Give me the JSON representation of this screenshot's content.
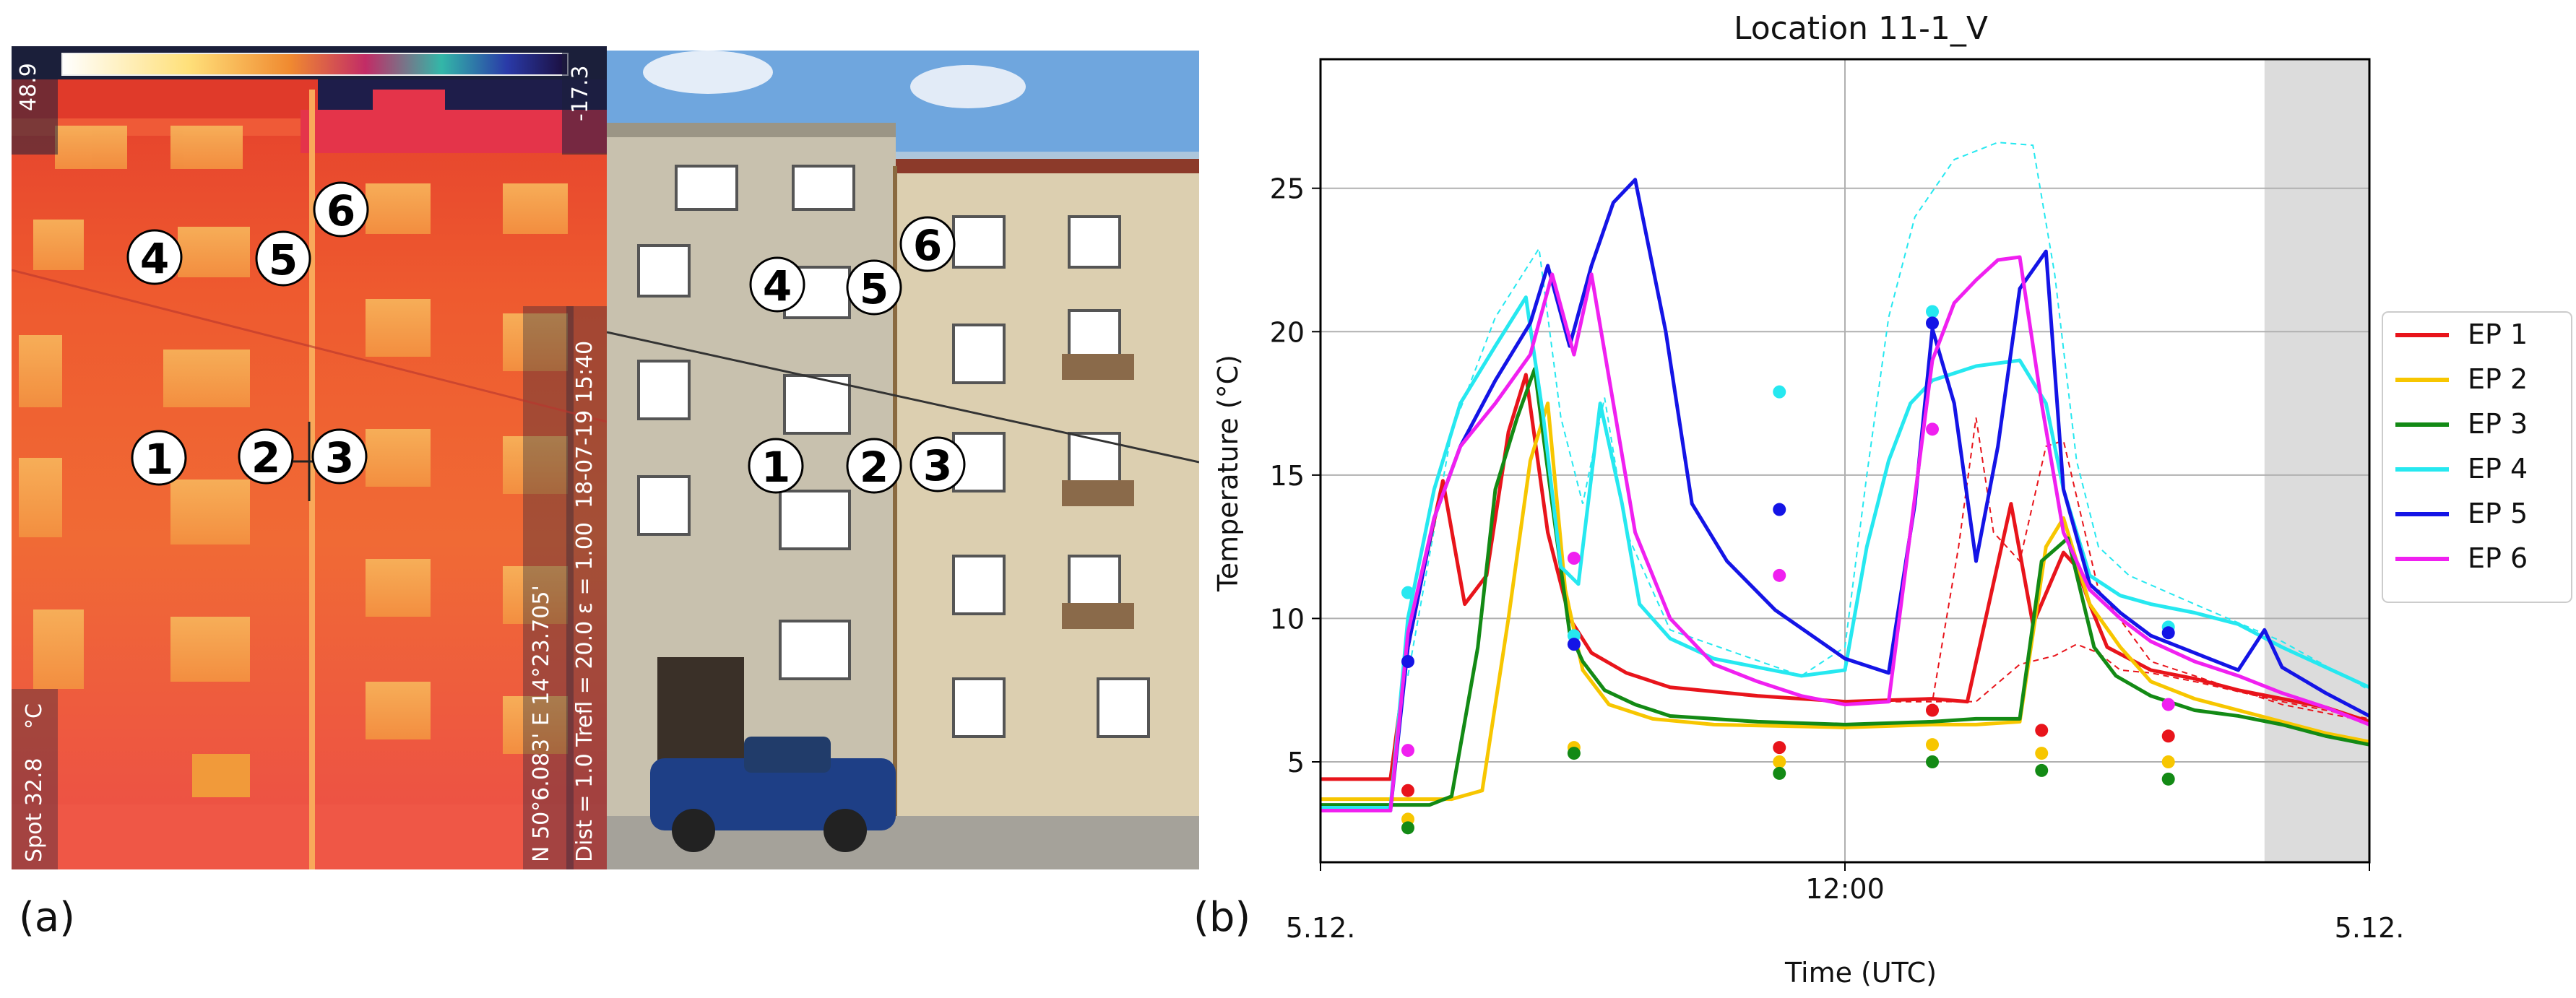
{
  "figure": {
    "panel_a_label": "(a)",
    "panel_b_label": "(b)"
  },
  "thermal_image": {
    "scale_max": "48.9",
    "scale_min": "-17.3",
    "unit": "°C",
    "spot": "Spot 32.8",
    "timestamp": "18-07-19 15:40",
    "gps": "N 50°6.083' E 14°23.705'",
    "params": "Dist = 1.0   Trefl = 20.0   ε = 1.00",
    "markers": [
      "1",
      "2",
      "3",
      "4",
      "5",
      "6"
    ]
  },
  "photo": {
    "markers": [
      "1",
      "2",
      "3",
      "4",
      "5",
      "6"
    ]
  },
  "chart_data": {
    "type": "line",
    "title": "Location 11-1_V",
    "xlabel": "Time (UTC)",
    "ylabel": "Temperature (°C)",
    "x_ticks": [
      {
        "t": 0,
        "label": "5.12."
      },
      {
        "t": 12,
        "label": "12:00"
      },
      {
        "t": 24,
        "label": "5.12."
      }
    ],
    "xlim_hours": [
      0,
      24
    ],
    "ylim": [
      1.5,
      29.5
    ],
    "y_ticks": [
      "5",
      "10",
      "15",
      "20",
      "25"
    ],
    "grid": true,
    "legend_position": "outside-right",
    "shaded_region_hours": [
      21.6,
      24
    ],
    "series": [
      {
        "name": "EP  1",
        "color": "#e8141b",
        "x": [
          0,
          1.6,
          2.0,
          2.4,
          2.8,
          3.3,
          3.8,
          4.3,
          4.7,
          5.2,
          5.7,
          6.2,
          7.0,
          8.0,
          10.0,
          12.0,
          14.0,
          14.8,
          15.8,
          16.3,
          17.0,
          17.3,
          17.6,
          18.0,
          19.0,
          20.0,
          21.0,
          22.0,
          23.0,
          24.0
        ],
        "y": [
          4.4,
          4.4,
          9.0,
          12.0,
          14.8,
          10.5,
          11.5,
          16.5,
          18.5,
          13.0,
          10.0,
          8.8,
          8.1,
          7.6,
          7.3,
          7.1,
          7.2,
          7.1,
          14.0,
          9.8,
          12.3,
          11.8,
          10.5,
          9.0,
          8.2,
          7.9,
          7.5,
          7.2,
          6.9,
          6.4
        ]
      },
      {
        "name": "EP  2",
        "color": "#f7c600",
        "x": [
          0,
          3.0,
          3.7,
          4.3,
          4.8,
          5.2,
          5.6,
          6.0,
          6.6,
          7.6,
          9.0,
          12.0,
          14.0,
          15.0,
          16.0,
          16.6,
          17.0,
          17.6,
          18.3,
          19.0,
          20.0,
          21.0,
          22.0,
          23.0,
          24.0
        ],
        "y": [
          3.7,
          3.7,
          4.0,
          10.0,
          15.5,
          17.5,
          11.0,
          8.2,
          7.0,
          6.5,
          6.3,
          6.2,
          6.3,
          6.3,
          6.4,
          12.5,
          13.5,
          10.5,
          9.0,
          7.8,
          7.2,
          6.8,
          6.4,
          6.0,
          5.7
        ]
      },
      {
        "name": "EP  3",
        "color": "#138a15",
        "x": [
          0,
          2.5,
          3.0,
          3.6,
          4.0,
          4.5,
          4.9,
          5.3,
          5.7,
          6.0,
          6.5,
          7.2,
          8.0,
          10.0,
          12.0,
          14.0,
          15.0,
          16.0,
          16.5,
          17.1,
          17.7,
          18.2,
          19.0,
          20.0,
          21.0,
          22.0,
          23.0,
          24.0
        ],
        "y": [
          3.5,
          3.5,
          3.8,
          9.0,
          14.5,
          17.0,
          18.7,
          14.0,
          9.5,
          8.5,
          7.5,
          7.0,
          6.6,
          6.4,
          6.3,
          6.4,
          6.5,
          6.5,
          12.0,
          12.8,
          9.0,
          8.0,
          7.3,
          6.8,
          6.6,
          6.3,
          5.9,
          5.6
        ]
      },
      {
        "name": "EP  4",
        "color": "#26e8f0",
        "x": [
          0,
          1.6,
          2.0,
          2.6,
          3.2,
          4.0,
          4.7,
          5.1,
          5.5,
          5.9,
          6.4,
          6.9,
          7.3,
          8.0,
          9.0,
          11.0,
          12.0,
          12.5,
          13.0,
          13.5,
          14.0,
          15.0,
          16.0,
          16.6,
          17.0,
          17.6,
          18.3,
          19.0,
          20.0,
          21.0,
          22.0,
          23.0,
          24.0
        ],
        "y": [
          3.4,
          3.4,
          10.0,
          14.5,
          17.5,
          19.5,
          21.2,
          17.0,
          11.8,
          11.2,
          17.5,
          14.0,
          10.5,
          9.3,
          8.6,
          8.0,
          8.2,
          12.5,
          15.5,
          17.5,
          18.3,
          18.8,
          19.0,
          17.5,
          14.5,
          11.5,
          10.8,
          10.5,
          10.2,
          9.8,
          9.0,
          8.3,
          7.6
        ]
      },
      {
        "name": "EP  5",
        "color": "#1414e6",
        "x": [
          0,
          1.6,
          2.0,
          2.6,
          3.2,
          4.0,
          4.8,
          5.2,
          5.7,
          6.2,
          6.7,
          7.2,
          7.9,
          8.5,
          9.3,
          10.4,
          12.0,
          13.0,
          13.6,
          14.0,
          14.5,
          15.0,
          15.5,
          16.0,
          16.6,
          17.0,
          17.6,
          18.3,
          19.0,
          20.0,
          21.0,
          21.6,
          22.0,
          23.0,
          24.0
        ],
        "y": [
          3.3,
          3.3,
          9.0,
          13.5,
          16.0,
          18.3,
          20.3,
          22.3,
          19.5,
          22.3,
          24.5,
          25.3,
          20.0,
          14.0,
          12.0,
          10.3,
          8.6,
          8.1,
          14.0,
          20.1,
          17.5,
          12.0,
          16.0,
          21.5,
          22.8,
          14.5,
          11.2,
          10.2,
          9.4,
          8.8,
          8.2,
          9.6,
          8.3,
          7.4,
          6.6
        ]
      },
      {
        "name": "EP  6",
        "color": "#f020f0",
        "x": [
          0,
          1.6,
          2.0,
          2.6,
          3.2,
          4.0,
          4.8,
          5.3,
          5.8,
          6.2,
          6.7,
          7.2,
          8.0,
          9.0,
          10.0,
          11.0,
          12.0,
          13.0,
          14.0,
          14.5,
          15.0,
          15.5,
          16.0,
          16.5,
          17.0,
          17.6,
          18.3,
          19.0,
          20.0,
          21.0,
          22.0,
          23.0,
          24.0
        ],
        "y": [
          3.3,
          3.3,
          9.5,
          13.5,
          16.0,
          17.5,
          19.2,
          22.0,
          19.2,
          22.0,
          17.5,
          13.0,
          10.0,
          8.4,
          7.8,
          7.3,
          7.0,
          7.1,
          19.0,
          21.0,
          21.8,
          22.5,
          22.6,
          17.5,
          13.0,
          11.0,
          10.0,
          9.2,
          8.5,
          8.0,
          7.4,
          6.9,
          6.3
        ]
      }
    ],
    "dashed_series": [
      {
        "color": "#26e8f0",
        "x": [
          2.0,
          3.0,
          4.0,
          5.0,
          5.5,
          6.0,
          6.5,
          7.0,
          8.0,
          9.5,
          11.0,
          12.0,
          12.5,
          13.0,
          13.6,
          14.5,
          15.5,
          16.3,
          16.8,
          17.3,
          17.8,
          18.5,
          20.0,
          22.0,
          24.0
        ],
        "y": [
          8.0,
          16.5,
          20.5,
          22.9,
          17.0,
          14.0,
          17.7,
          13.0,
          9.6,
          8.8,
          8.0,
          9.0,
          15.0,
          20.5,
          24.0,
          26.0,
          26.6,
          26.5,
          22.0,
          15.5,
          12.5,
          11.5,
          10.5,
          9.2,
          7.5
        ]
      },
      {
        "color": "#e8141b",
        "x": [
          12.0,
          13.0,
          14.0,
          14.6,
          15.0,
          15.4,
          16.0,
          16.6,
          17.0,
          17.8,
          19.0,
          20.0,
          22.0,
          24.0
        ],
        "y": [
          7.1,
          7.1,
          7.1,
          12.5,
          17.0,
          13.0,
          12.0,
          16.0,
          16.2,
          11.0,
          8.5,
          8.0,
          7.0,
          6.4
        ]
      },
      {
        "color": "#e8141b",
        "x": [
          12.0,
          15.0,
          16.0,
          16.8,
          17.3,
          17.8,
          18.3,
          19.0,
          20.0,
          22.0,
          24.0
        ],
        "y": [
          7.1,
          7.1,
          8.4,
          8.7,
          9.1,
          8.8,
          8.2,
          8.1,
          7.8,
          7.1,
          6.5
        ]
      }
    ],
    "dot_markers": [
      {
        "x": 2.0,
        "values": [
          {
            "s": 0,
            "y": 4.0
          },
          {
            "s": 1,
            "y": 3.0
          },
          {
            "s": 2,
            "y": 2.7
          },
          {
            "s": 3,
            "y": 10.9
          },
          {
            "s": 4,
            "y": 8.5
          },
          {
            "s": 5,
            "y": 5.4
          }
        ]
      },
      {
        "x": 5.8,
        "values": [
          {
            "s": 1,
            "y": 5.5
          },
          {
            "s": 2,
            "y": 5.3
          },
          {
            "s": 3,
            "y": 9.4
          },
          {
            "s": 4,
            "y": 9.1
          },
          {
            "s": 5,
            "y": 12.1
          }
        ]
      },
      {
        "x": 10.5,
        "values": [
          {
            "s": 0,
            "y": 5.5
          },
          {
            "s": 1,
            "y": 5.0
          },
          {
            "s": 2,
            "y": 4.6
          },
          {
            "s": 3,
            "y": 17.9
          },
          {
            "s": 4,
            "y": 13.8
          },
          {
            "s": 5,
            "y": 11.5
          }
        ]
      },
      {
        "x": 14.0,
        "values": [
          {
            "s": 0,
            "y": 6.8
          },
          {
            "s": 1,
            "y": 5.6
          },
          {
            "s": 2,
            "y": 5.0
          },
          {
            "s": 3,
            "y": 20.7
          },
          {
            "s": 4,
            "y": 20.3
          },
          {
            "s": 5,
            "y": 16.6
          }
        ]
      },
      {
        "x": 16.5,
        "values": [
          {
            "s": 0,
            "y": 6.1
          },
          {
            "s": 1,
            "y": 5.3
          },
          {
            "s": 2,
            "y": 4.7
          }
        ]
      },
      {
        "x": 19.4,
        "values": [
          {
            "s": 0,
            "y": 5.9
          },
          {
            "s": 1,
            "y": 5.0
          },
          {
            "s": 2,
            "y": 4.4
          },
          {
            "s": 3,
            "y": 9.7
          },
          {
            "s": 4,
            "y": 9.5
          },
          {
            "s": 5,
            "y": 7.0
          }
        ]
      }
    ]
  }
}
